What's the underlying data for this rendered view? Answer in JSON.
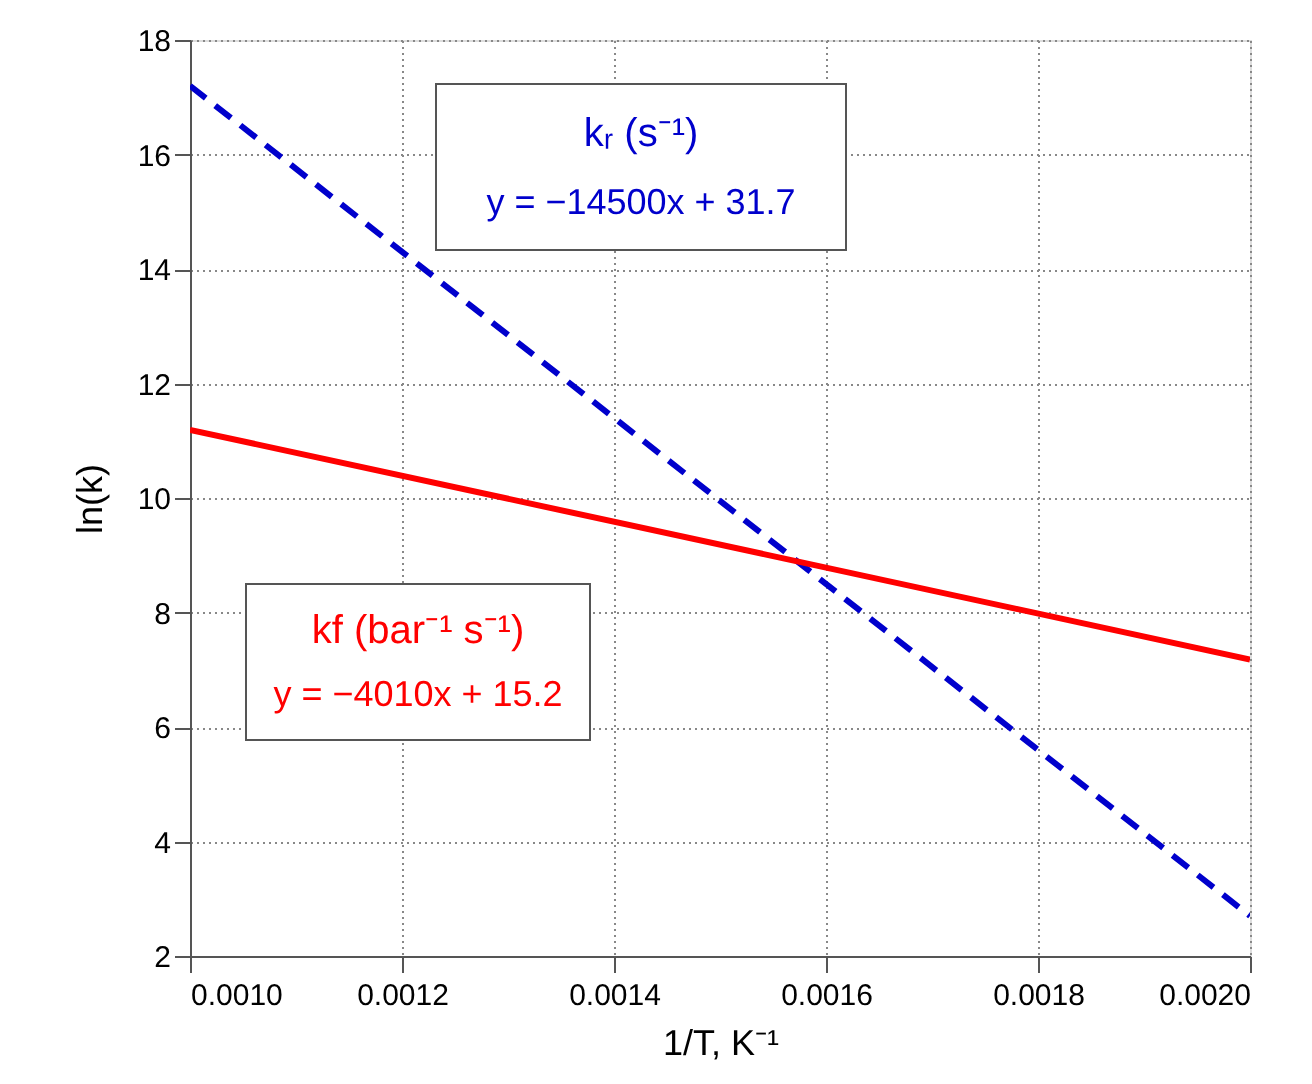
{
  "chart_data": {
    "type": "line",
    "xlabel": "1/T, K⁻¹",
    "ylabel": "ln(k)",
    "x": [
      0.001,
      0.002
    ],
    "series": [
      {
        "name": "kᵣ (s⁻¹)",
        "color": "#0000cc",
        "values": [
          17.2,
          2.7
        ],
        "line_style": "dashed"
      },
      {
        "name": "kf (bar⁻¹ s⁻¹)",
        "color": "#ff0000",
        "values": [
          11.19,
          7.18
        ],
        "line_style": "solid"
      }
    ],
    "annotations": [
      "y = −14500x + 31.7",
      "y = −4010x + 15.2"
    ],
    "xlim": [
      0.001,
      0.002
    ],
    "ylim": [
      2,
      18
    ],
    "xticks": [
      {
        "value": 0.001,
        "label": "0.0010"
      },
      {
        "value": 0.0012,
        "label": "0.0012"
      },
      {
        "value": 0.0014,
        "label": "0.0014"
      },
      {
        "value": 0.0016,
        "label": "0.0016"
      },
      {
        "value": 0.0018,
        "label": "0.0018"
      },
      {
        "value": 0.002,
        "label": "0.0020"
      }
    ],
    "yticks": [
      2,
      4,
      6,
      8,
      10,
      12,
      14,
      16,
      18
    ],
    "grid": true,
    "marker": "none"
  }
}
